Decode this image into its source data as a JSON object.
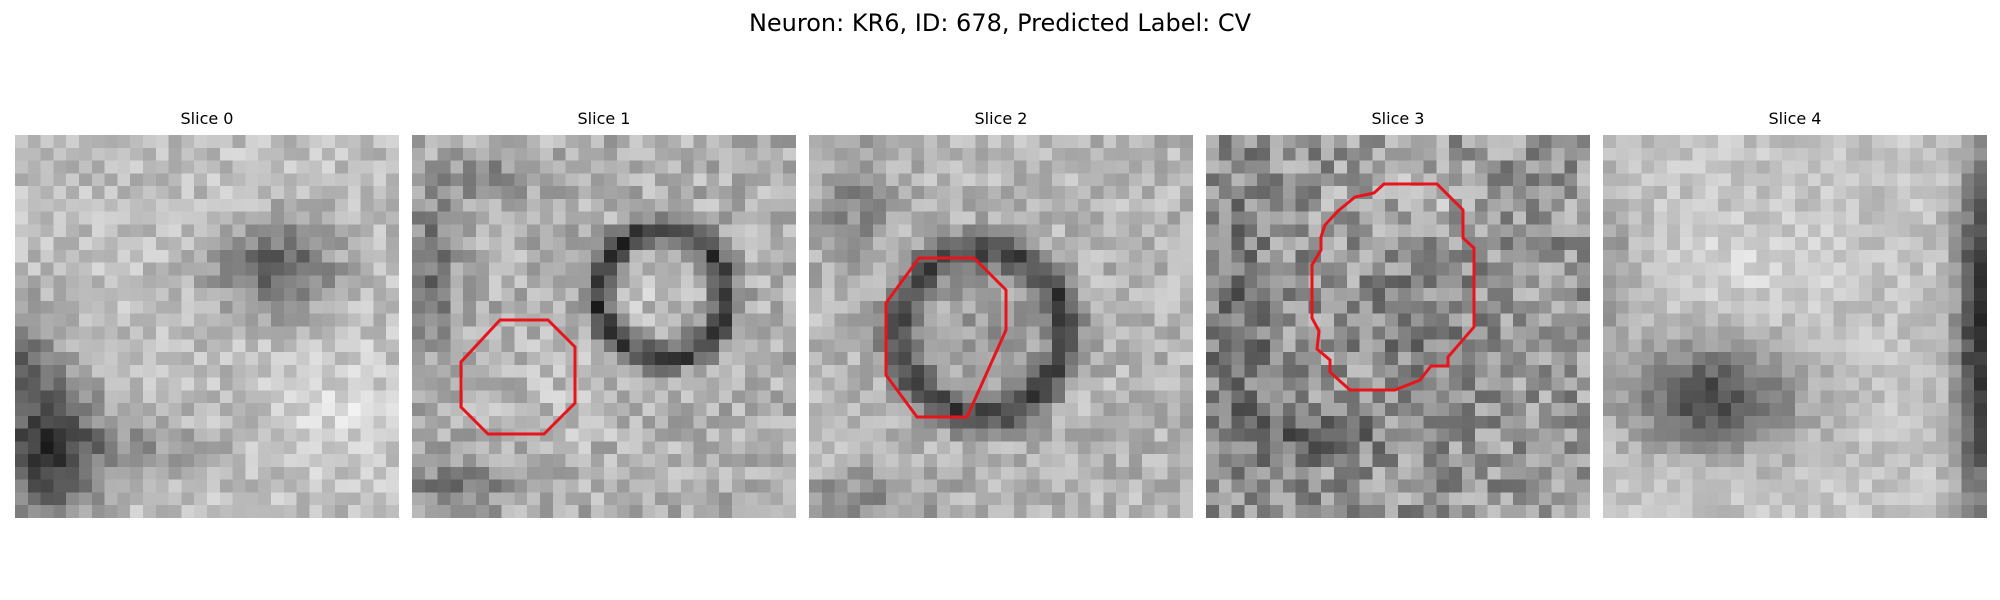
{
  "figure": {
    "title": "Neuron: KR6, ID: 678, Predicted Label: CV"
  },
  "slices": [
    {
      "title": "Slice 0",
      "has_contour": false
    },
    {
      "title": "Slice 1",
      "has_contour": true
    },
    {
      "title": "Slice 2",
      "has_contour": true
    },
    {
      "title": "Slice 3",
      "has_contour": true
    },
    {
      "title": "Slice 4",
      "has_contour": false
    }
  ],
  "style": {
    "contour_color": "#e8141c",
    "colormap": "grayscale"
  }
}
